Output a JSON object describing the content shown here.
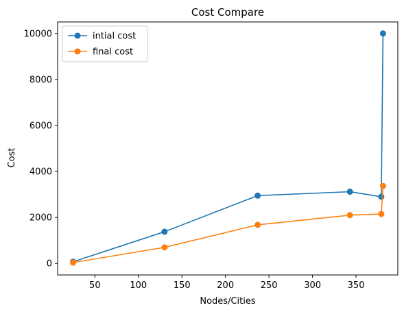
{
  "chart_data": {
    "type": "line",
    "title": "Cost Compare",
    "xlabel": "Nodes/Cities",
    "ylabel": "Cost",
    "xlim": [
      7.2,
      398
    ],
    "ylim": [
      -500,
      10500
    ],
    "xticks": [
      50,
      100,
      150,
      200,
      250,
      300,
      350
    ],
    "yticks": [
      0,
      2000,
      4000,
      6000,
      8000,
      10000
    ],
    "grid": false,
    "legend": "top-left",
    "series": [
      {
        "name": "intial cost",
        "color": "#1f77b4",
        "x": [
          25,
          130,
          237,
          343,
          379,
          381
        ],
        "y": [
          75,
          1380,
          2950,
          3120,
          2900,
          10000
        ]
      },
      {
        "name": "final cost",
        "color": "#ff7f0e",
        "x": [
          25,
          130,
          237,
          343,
          379,
          381
        ],
        "y": [
          40,
          700,
          1680,
          2100,
          2150,
          3370
        ]
      }
    ]
  }
}
